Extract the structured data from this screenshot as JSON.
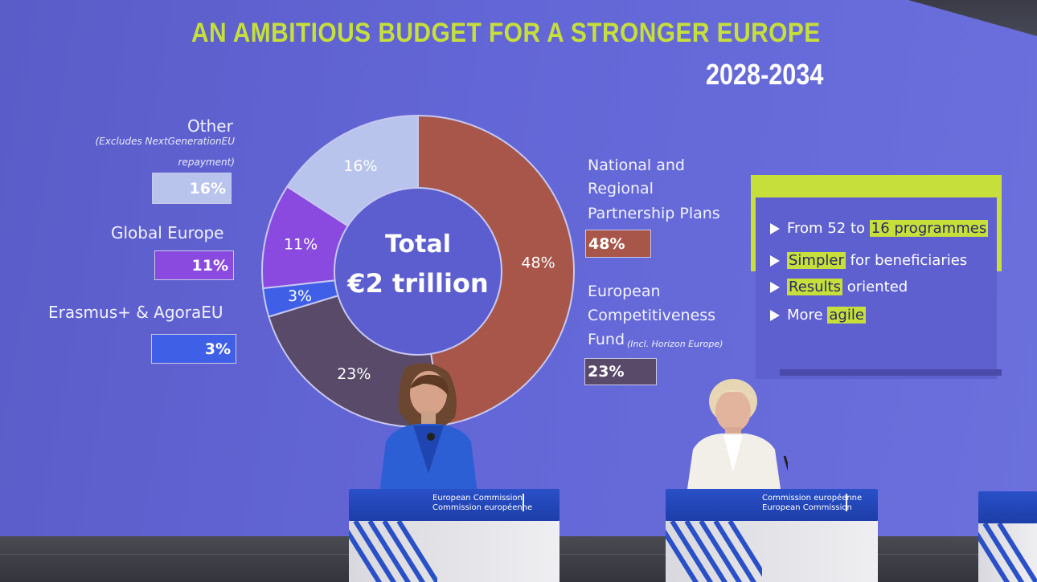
{
  "slide": {
    "title": "AN AMBITIOUS BUDGET FOR A STRONGER EUROPE",
    "years": "2028-2034",
    "center_label_1": "Total",
    "center_label_2": "€2 trillion",
    "other_label": "Other",
    "other_note_1": "(Excludes NextGenerationEU",
    "other_note_2": "repayment)",
    "global_label": "Global Europe",
    "erasmus_label": "Erasmus+ & AgoraEU",
    "national_label_1": "National and",
    "national_label_2": "Regional",
    "national_label_3": "Partnership Plans",
    "ecf_label_1": "European",
    "ecf_label_2": "Competitiveness",
    "ecf_label_3": "Fund",
    "ecf_note": "(Incl. Horizon Europe)",
    "box_other": "16%",
    "box_global": "11%",
    "box_erasmus": "3%",
    "box_national": "48%",
    "box_ecf": "23%",
    "bullets": {
      "b1_pre": "From 52 to",
      "b1_hl": "16 programmes",
      "b2_hl": "Simpler",
      "b2_post": "for beneficiaries",
      "b3_hl": "Results",
      "b3_post": "oriented",
      "b4_pre": "More",
      "b4_hl": "agile"
    }
  },
  "chart_data": {
    "type": "pie",
    "categories": [
      "National and Regional Partnership Plans",
      "European Competitiveness Fund",
      "Erasmus+ & AgoraEU",
      "Global Europe",
      "Other"
    ],
    "values": [
      48,
      23,
      3,
      11,
      16
    ],
    "labels": [
      "48%",
      "23%",
      "3%",
      "11%",
      "16%"
    ],
    "colors": [
      "#a9564a",
      "#5a4a6a",
      "#3f5fe6",
      "#8a4ae0",
      "#b8c4ec"
    ]
  },
  "podiums": {
    "left_line_1": "European Commission",
    "left_line_2": "Commission européenne",
    "right_line_1": "Commission européenne",
    "right_line_2": "European Commission"
  }
}
